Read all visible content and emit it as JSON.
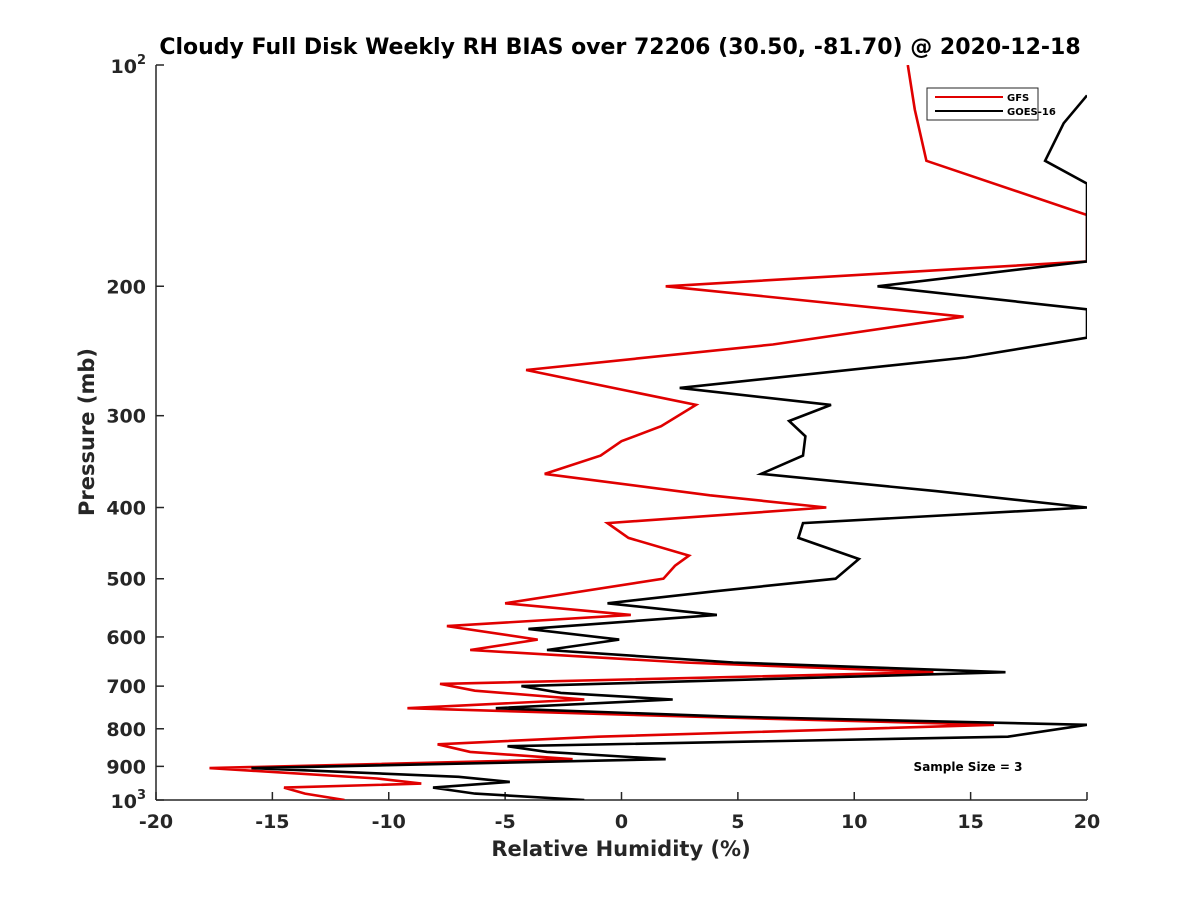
{
  "chart_data": {
    "type": "line",
    "title": "Cloudy Full Disk Weekly RH BIAS over 72206 (30.50, -81.70) @ 2020-12-18",
    "xlabel": "Relative Humidity (%)",
    "ylabel": "Pressure (mb)",
    "xlim": [
      -20,
      20
    ],
    "ylim": [
      100,
      1000
    ],
    "yscale": "log",
    "yreversed": true,
    "xticks": [
      -20,
      -15,
      -10,
      -5,
      0,
      5,
      10,
      15,
      20
    ],
    "xtick_labels": [
      "-20",
      "-15",
      "-10",
      "-5",
      "0",
      "5",
      "10",
      "15",
      "20"
    ],
    "yticks": [
      200,
      300,
      400,
      500,
      600,
      700,
      800,
      900
    ],
    "ytick_labels": [
      "200",
      "300",
      "400",
      "500",
      "600",
      "700",
      "800",
      "900"
    ],
    "ylim_labels": {
      "top_base": "10",
      "top_exp": "2",
      "bottom_base": "10",
      "bottom_exp": "3"
    },
    "legend_position": "top-right",
    "annotation": "Sample Size = 3",
    "series": [
      {
        "name": "GFS",
        "color": "#e00000",
        "points": [
          [
            12.3,
            100
          ],
          [
            12.6,
            115
          ],
          [
            13.1,
            135
          ],
          [
            20.0,
            160
          ],
          [
            20.0,
            185
          ],
          [
            1.9,
            200
          ],
          [
            14.7,
            220
          ],
          [
            6.5,
            240
          ],
          [
            -4.1,
            260
          ],
          [
            3.2,
            290
          ],
          [
            1.7,
            310
          ],
          [
            0.0,
            325
          ],
          [
            -0.9,
            340
          ],
          [
            -3.3,
            360
          ],
          [
            3.8,
            385
          ],
          [
            8.8,
            400
          ],
          [
            -0.6,
            420
          ],
          [
            0.3,
            440
          ],
          [
            2.9,
            465
          ],
          [
            2.3,
            480
          ],
          [
            1.8,
            500
          ],
          [
            -5.0,
            540
          ],
          [
            0.4,
            560
          ],
          [
            -7.5,
            580
          ],
          [
            -3.6,
            605
          ],
          [
            -6.5,
            625
          ],
          [
            2.7,
            650
          ],
          [
            13.4,
            670
          ],
          [
            -7.8,
            695
          ],
          [
            -6.3,
            710
          ],
          [
            -1.6,
            730
          ],
          [
            -9.2,
            750
          ],
          [
            3.0,
            770
          ],
          [
            16.0,
            790
          ],
          [
            -1.0,
            820
          ],
          [
            -7.9,
            840
          ],
          [
            -6.5,
            860
          ],
          [
            -2.1,
            880
          ],
          [
            -17.7,
            905
          ],
          [
            -10.5,
            935
          ],
          [
            -8.6,
            950
          ],
          [
            -14.5,
            962
          ],
          [
            -13.6,
            980
          ],
          [
            -11.9,
            1000
          ]
        ]
      },
      {
        "name": "GOES-16",
        "color": "#000000",
        "points": [
          [
            20.0,
            110
          ],
          [
            19.0,
            120
          ],
          [
            18.2,
            135
          ],
          [
            20.0,
            145
          ],
          [
            20.0,
            185
          ],
          [
            11.0,
            200
          ],
          [
            20.0,
            215
          ],
          [
            20.0,
            235
          ],
          [
            14.8,
            250
          ],
          [
            2.5,
            275
          ],
          [
            9.0,
            290
          ],
          [
            7.2,
            305
          ],
          [
            7.9,
            320
          ],
          [
            7.8,
            340
          ],
          [
            6.0,
            360
          ],
          [
            13.5,
            380
          ],
          [
            20.0,
            400
          ],
          [
            7.8,
            420
          ],
          [
            7.6,
            440
          ],
          [
            10.2,
            470
          ],
          [
            9.2,
            500
          ],
          [
            4.0,
            520
          ],
          [
            -0.6,
            540
          ],
          [
            4.1,
            560
          ],
          [
            -4.0,
            585
          ],
          [
            -0.1,
            605
          ],
          [
            -3.2,
            625
          ],
          [
            4.8,
            650
          ],
          [
            16.5,
            670
          ],
          [
            -4.3,
            700
          ],
          [
            -2.6,
            715
          ],
          [
            2.2,
            730
          ],
          [
            -5.4,
            750
          ],
          [
            4.6,
            770
          ],
          [
            20.0,
            790
          ],
          [
            16.6,
            820
          ],
          [
            -4.9,
            845
          ],
          [
            -3.2,
            860
          ],
          [
            1.9,
            880
          ],
          [
            -15.9,
            905
          ],
          [
            -7.0,
            930
          ],
          [
            -4.8,
            945
          ],
          [
            -8.1,
            962
          ],
          [
            -6.3,
            980
          ],
          [
            -1.6,
            1000
          ]
        ]
      }
    ]
  }
}
